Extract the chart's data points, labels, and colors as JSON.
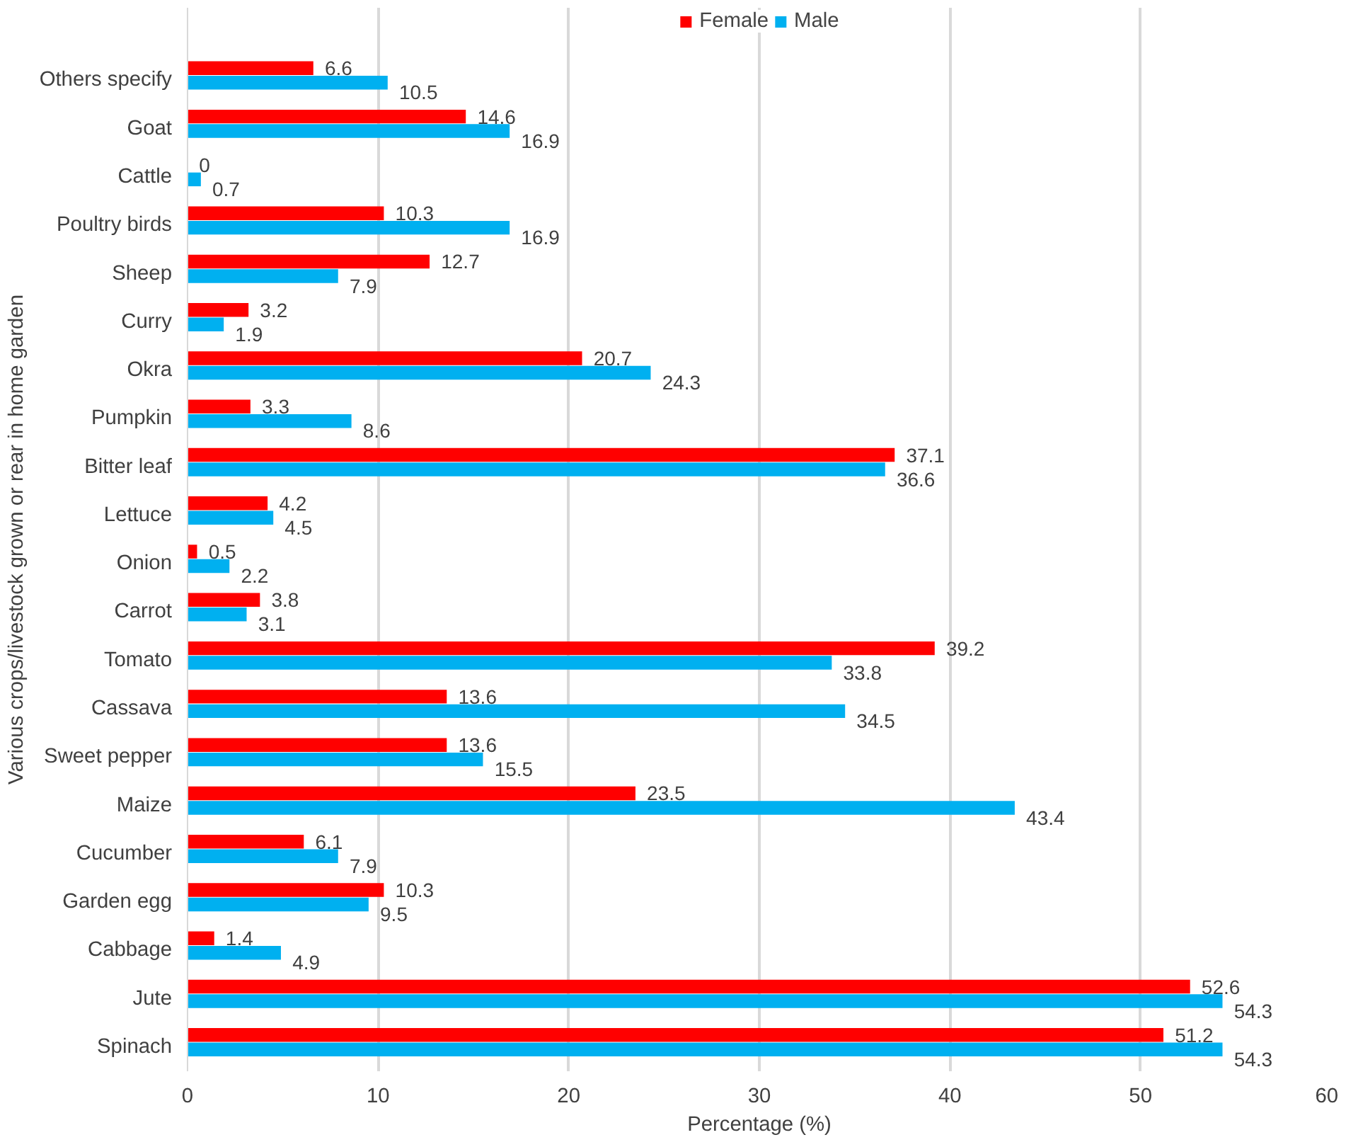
{
  "chart_data": {
    "type": "bar",
    "orientation": "horizontal",
    "xlabel": "Percentage (%)",
    "ylabel": "Various crops/livestock grown or rear in home garden",
    "categories": [
      "Others specify",
      "Goat",
      "Cattle",
      "Poultry birds",
      "Sheep",
      "Curry",
      "Okra",
      "Pumpkin",
      "Bitter leaf",
      "Lettuce",
      "Onion",
      "Carrot",
      "Tomato",
      "Cassava",
      "Sweet pepper",
      "Maize",
      "Cucumber",
      "Garden egg",
      "Cabbage",
      "Jute",
      "Spinach"
    ],
    "series": [
      {
        "name": "Female",
        "color": "#ff0000",
        "values": [
          6.6,
          14.6,
          0,
          10.3,
          12.7,
          3.2,
          20.7,
          3.3,
          37.1,
          4.2,
          0.5,
          3.8,
          39.2,
          13.6,
          13.6,
          23.5,
          6.1,
          10.3,
          1.4,
          52.6,
          51.2
        ]
      },
      {
        "name": "Male",
        "color": "#00b0f0",
        "values": [
          10.5,
          16.9,
          0.7,
          16.9,
          7.9,
          1.9,
          24.3,
          8.6,
          36.6,
          4.5,
          2.2,
          3.1,
          33.8,
          34.5,
          15.5,
          43.4,
          7.9,
          9.5,
          4.9,
          54.3,
          54.3
        ]
      }
    ],
    "xlim": [
      0,
      60
    ],
    "xticks": [
      0,
      10,
      20,
      30,
      40,
      50,
      60
    ],
    "grid": "x",
    "legend": "top",
    "data_labels": true
  }
}
